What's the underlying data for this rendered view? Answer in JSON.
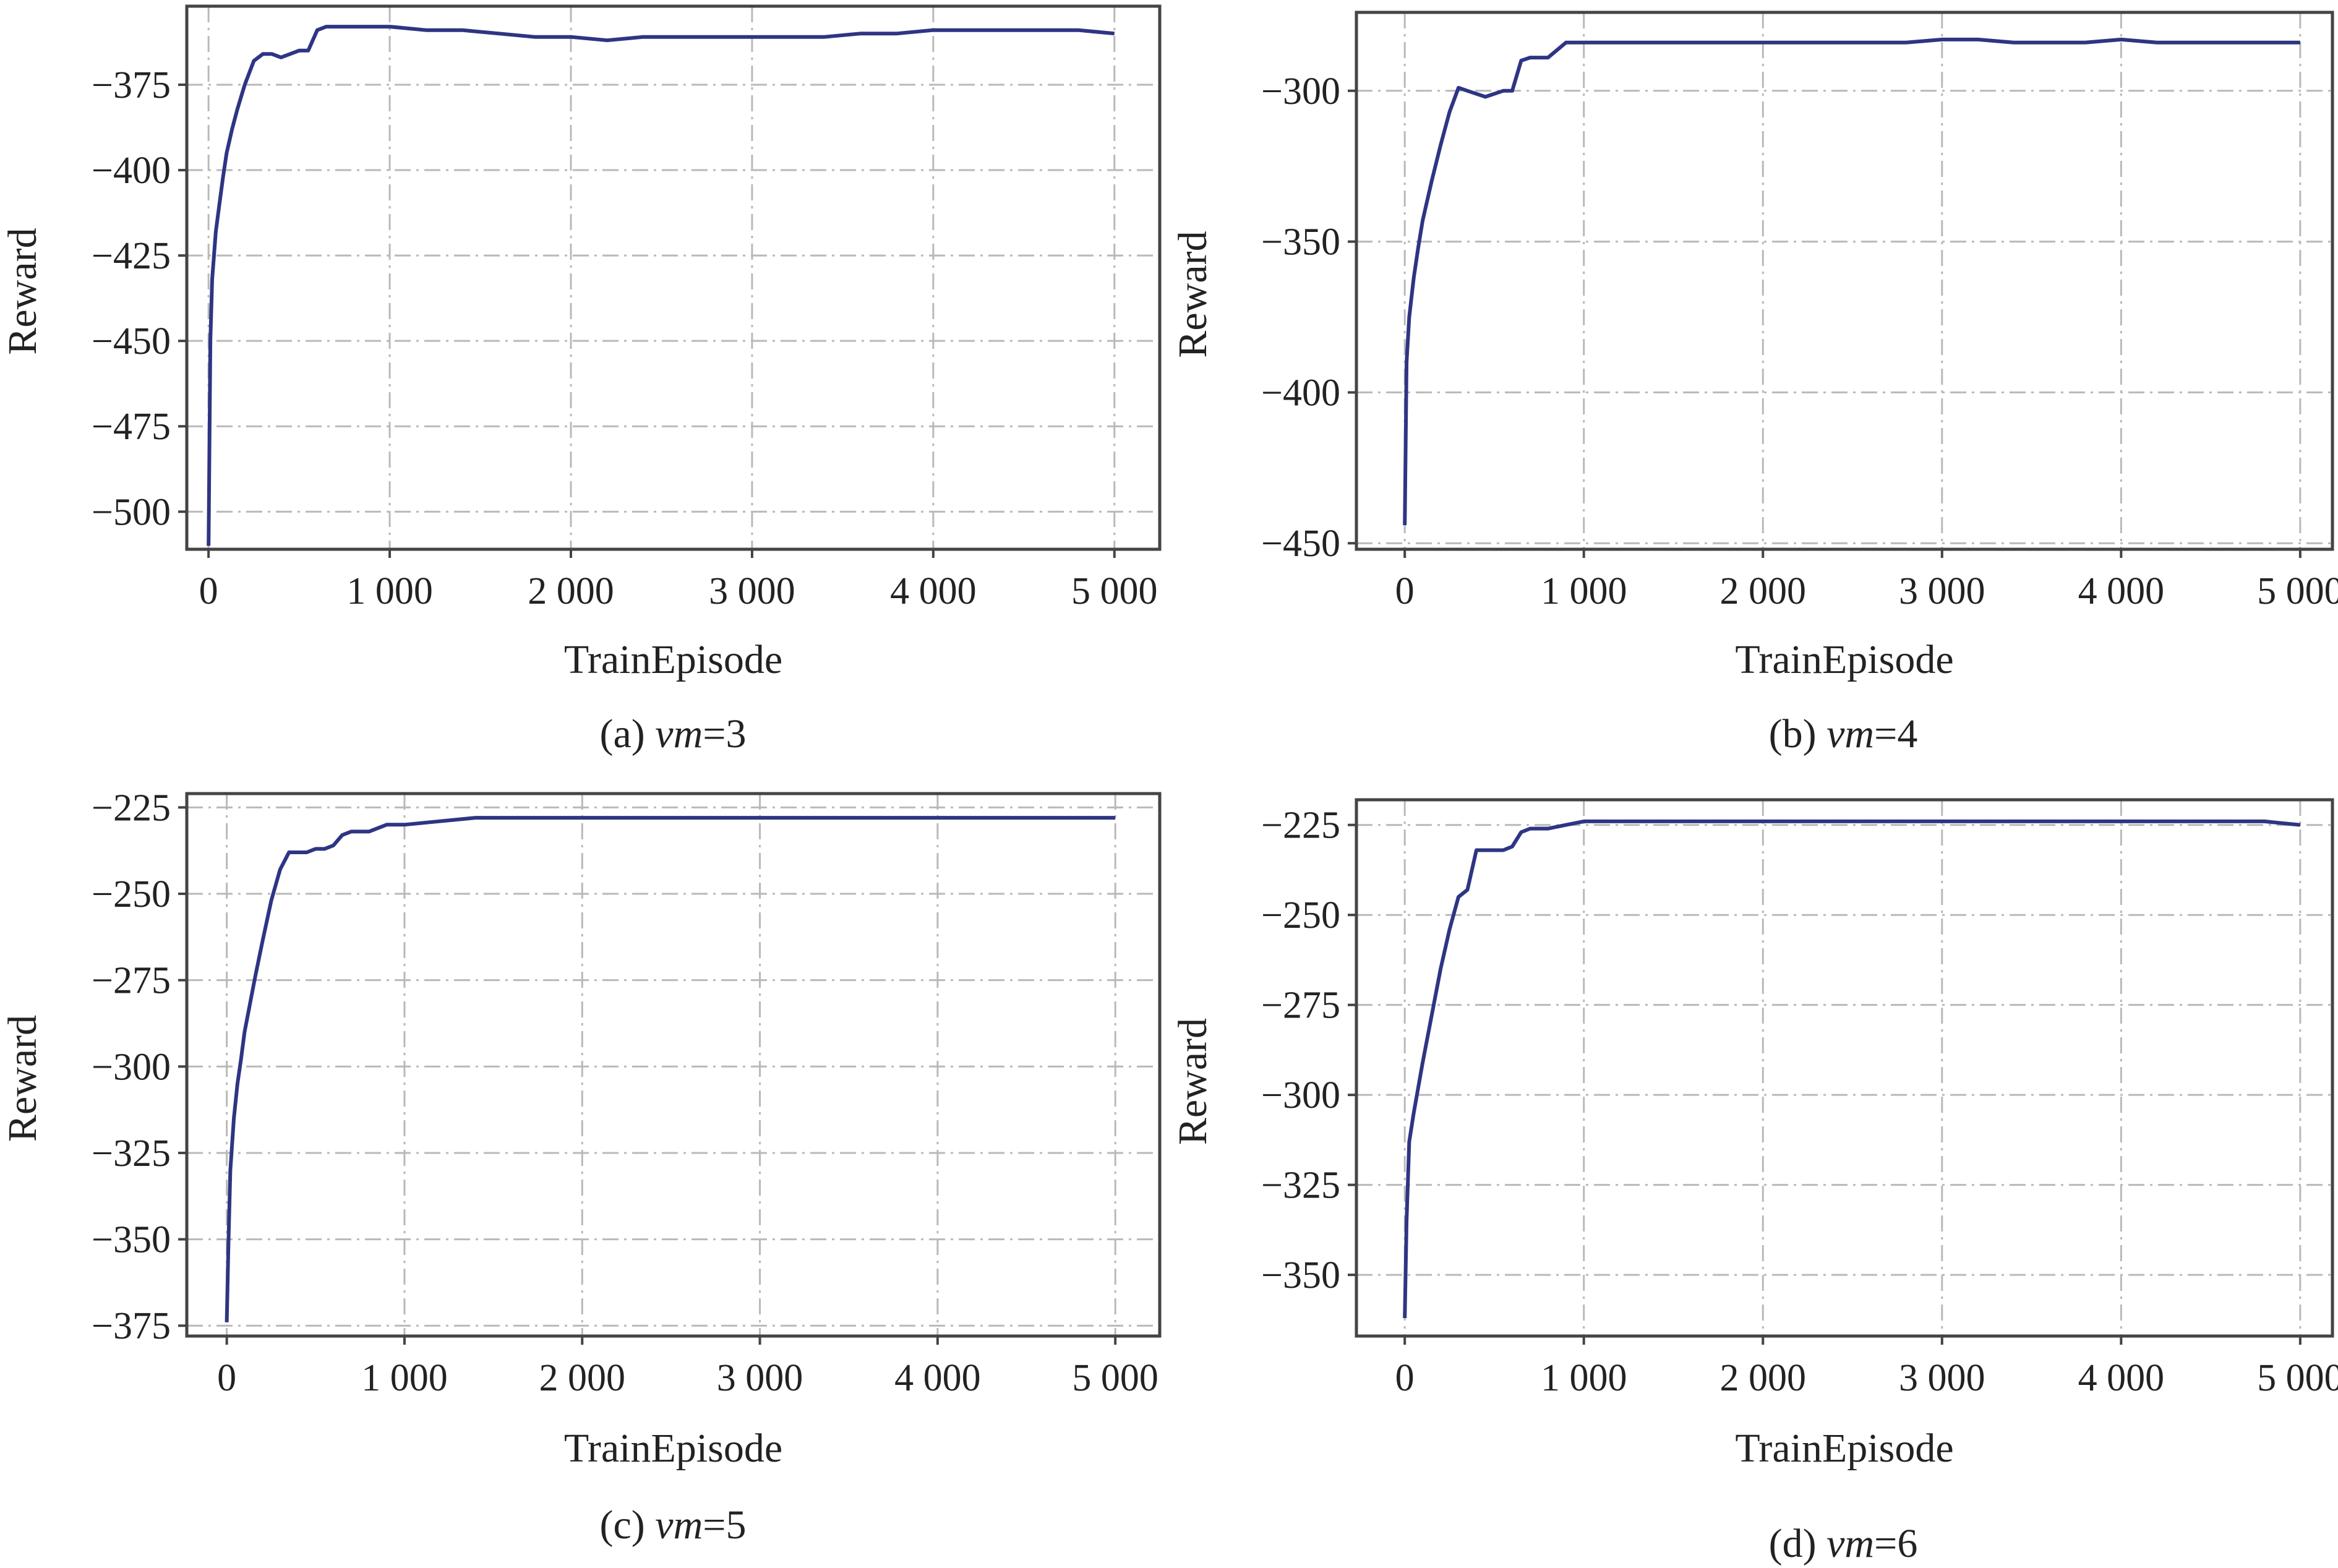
{
  "chart_data": [
    {
      "type": "line",
      "caption_prefix": "(a) ",
      "caption_var": "vm",
      "caption_suffix": "=3",
      "xlabel": "TrainEpisode",
      "ylabel": "Reward",
      "xlim": [
        -120,
        5250
      ],
      "ylim": [
        -511,
        -352
      ],
      "xticks": [
        0,
        1000,
        2000,
        3000,
        4000,
        5000
      ],
      "xtick_labels": [
        "0",
        "1 000",
        "2 000",
        "3 000",
        "4 000",
        "5 000"
      ],
      "yticks": [
        -375,
        -400,
        -425,
        -450,
        -475,
        -500
      ],
      "ytick_labels": [
        "−375",
        "−400",
        "−425",
        "−450",
        "−475",
        "−500"
      ],
      "grid": true,
      "series": [
        {
          "color": "#2e3583",
          "x": [
            0,
            10,
            20,
            40,
            60,
            80,
            100,
            130,
            160,
            200,
            250,
            300,
            350,
            400,
            450,
            500,
            550,
            600,
            650,
            700,
            800,
            900,
            1000,
            1200,
            1400,
            1600,
            1800,
            2000,
            2200,
            2400,
            2600,
            2800,
            3000,
            3200,
            3400,
            3600,
            3800,
            4000,
            4200,
            4400,
            4600,
            4800,
            5000
          ],
          "y": [
            -510,
            -450,
            -432,
            -418,
            -410,
            -402,
            -395,
            -388,
            -382,
            -375,
            -368,
            -366,
            -366,
            -367,
            -366,
            -365,
            -365,
            -359,
            -358,
            -358,
            -358,
            -358,
            -358,
            -359,
            -359,
            -360,
            -361,
            -361,
            -362,
            -361,
            -361,
            -361,
            -361,
            -361,
            -361,
            -360,
            -360,
            -359,
            -359,
            -359,
            -359,
            -359,
            -360
          ]
        }
      ]
    },
    {
      "type": "line",
      "caption_prefix": "(b) ",
      "caption_var": "vm",
      "caption_suffix": "=4",
      "xlabel": "TrainEpisode",
      "ylabel": "Reward",
      "xlim": [
        -270,
        5180
      ],
      "ylim": [
        -452,
        -274
      ],
      "xticks": [
        0,
        1000,
        2000,
        3000,
        4000,
        5000
      ],
      "xtick_labels": [
        "0",
        "1 000",
        "2 000",
        "3 000",
        "4 000",
        "5 000"
      ],
      "yticks": [
        -300,
        -350,
        -400,
        -450
      ],
      "ytick_labels": [
        "−300",
        "−350",
        "−400",
        "−450"
      ],
      "grid": true,
      "series": [
        {
          "color": "#2e3583",
          "x": [
            0,
            10,
            25,
            50,
            75,
            100,
            150,
            200,
            250,
            300,
            350,
            400,
            450,
            500,
            550,
            600,
            650,
            700,
            800,
            900,
            1000,
            1200,
            1400,
            1600,
            1800,
            2000,
            2200,
            2400,
            2600,
            2800,
            3000,
            3200,
            3400,
            3600,
            3800,
            4000,
            4200,
            4400,
            4600,
            4800,
            5000
          ],
          "y": [
            -444,
            -390,
            -375,
            -362,
            -352,
            -343,
            -330,
            -318,
            -307,
            -299,
            -300,
            -301,
            -302,
            -301,
            -300,
            -300,
            -290,
            -289,
            -289,
            -284,
            -284,
            -284,
            -284,
            -284,
            -284,
            -284,
            -284,
            -284,
            -284,
            -284,
            -283,
            -283,
            -284,
            -284,
            -284,
            -283,
            -284,
            -284,
            -284,
            -284,
            -284
          ]
        }
      ]
    },
    {
      "type": "line",
      "caption_prefix": "(c) ",
      "caption_var": "vm",
      "caption_suffix": "=5",
      "xlabel": "TrainEpisode",
      "ylabel": "Reward",
      "xlim": [
        -225,
        5250
      ],
      "ylim": [
        -378,
        -221
      ],
      "xticks": [
        0,
        1000,
        2000,
        3000,
        4000,
        5000
      ],
      "xtick_labels": [
        "0",
        "1 000",
        "2 000",
        "3 000",
        "4 000",
        "5 000"
      ],
      "yticks": [
        -225,
        -250,
        -275,
        -300,
        -325,
        -350,
        -375
      ],
      "ytick_labels": [
        "−225",
        "−250",
        "−275",
        "−300",
        "−325",
        "−350",
        "−375"
      ],
      "grid": true,
      "series": [
        {
          "color": "#2e3583",
          "x": [
            0,
            10,
            20,
            40,
            60,
            80,
            100,
            130,
            160,
            200,
            250,
            300,
            350,
            400,
            450,
            500,
            550,
            600,
            650,
            700,
            800,
            900,
            1000,
            1200,
            1400,
            1600,
            1800,
            2000,
            2200,
            2400,
            2600,
            2800,
            3000,
            3200,
            3400,
            3600,
            3800,
            4000,
            4200,
            4400,
            4600,
            4800,
            5000
          ],
          "y": [
            -374,
            -350,
            -330,
            -315,
            -305,
            -298,
            -290,
            -282,
            -274,
            -264,
            -252,
            -243,
            -238,
            -238,
            -238,
            -237,
            -237,
            -236,
            -233,
            -232,
            -232,
            -230,
            -230,
            -229,
            -228,
            -228,
            -228,
            -228,
            -228,
            -228,
            -228,
            -228,
            -228,
            -228,
            -228,
            -228,
            -228,
            -228,
            -228,
            -228,
            -228,
            -228,
            -228
          ]
        }
      ]
    },
    {
      "type": "line",
      "caption_prefix": "(d) ",
      "caption_var": "vm",
      "caption_suffix": "=6",
      "xlabel": "TrainEpisode",
      "ylabel": "Reward",
      "xlim": [
        -270,
        5180
      ],
      "ylim": [
        -367,
        -218
      ],
      "xticks": [
        0,
        1000,
        2000,
        3000,
        4000,
        5000
      ],
      "xtick_labels": [
        "0",
        "1 000",
        "2 000",
        "3 000",
        "4 000",
        "5 000"
      ],
      "yticks": [
        -225,
        -250,
        -275,
        -300,
        -325,
        -350
      ],
      "ytick_labels": [
        "−225",
        "−250",
        "−275",
        "−300",
        "−325",
        "−350"
      ],
      "grid": true,
      "series": [
        {
          "color": "#2e3583",
          "x": [
            0,
            10,
            25,
            50,
            75,
            100,
            150,
            200,
            250,
            300,
            350,
            400,
            450,
            500,
            550,
            600,
            650,
            700,
            800,
            900,
            1000,
            1200,
            1400,
            1600,
            1800,
            2000,
            2200,
            2400,
            2600,
            2800,
            3000,
            3200,
            3400,
            3600,
            3800,
            4000,
            4200,
            4400,
            4600,
            4800,
            5000
          ],
          "y": [
            -362,
            -335,
            -313,
            -305,
            -298,
            -291,
            -278,
            -265,
            -254,
            -245,
            -243,
            -232,
            -232,
            -232,
            -232,
            -231,
            -227,
            -226,
            -226,
            -225,
            -224,
            -224,
            -224,
            -224,
            -224,
            -224,
            -224,
            -224,
            -224,
            -224,
            -224,
            -224,
            -224,
            -224,
            -224,
            -224,
            -224,
            -224,
            -224,
            -224,
            -225
          ]
        }
      ]
    }
  ]
}
